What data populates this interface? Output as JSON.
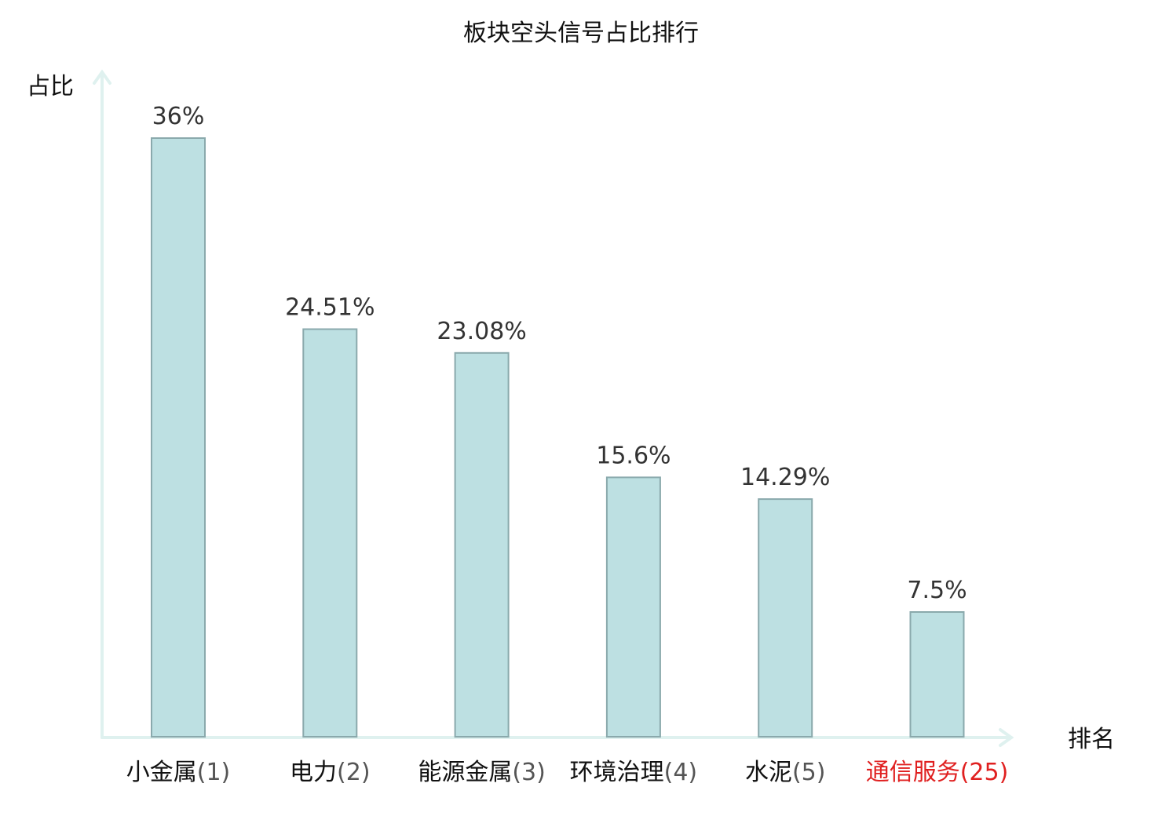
{
  "chart_data": {
    "type": "bar",
    "title": "板块空头信号占比排行",
    "xlabel": "排名",
    "ylabel": "占比",
    "categories": [
      "小金属",
      "电力",
      "能源金属",
      "环境治理",
      "水泥",
      "通信服务"
    ],
    "ranks": [
      "(1)",
      "(2)",
      "(3)",
      "(4)",
      "(5)",
      "(25)"
    ],
    "highlighted": [
      false,
      false,
      false,
      false,
      false,
      true
    ],
    "values": [
      36,
      24.51,
      23.08,
      15.6,
      14.29,
      7.5
    ],
    "value_labels": [
      "36%",
      "24.51%",
      "23.08%",
      "15.6%",
      "14.29%",
      "7.5%"
    ],
    "ylim": [
      0,
      36
    ],
    "grid": false,
    "legend": "none"
  },
  "colors": {
    "bar_fill": "#bde0e2",
    "bar_stroke": "#8aa9ac",
    "axis": "#dff1ef",
    "text": "#111111",
    "value_text": "#333333",
    "rank_text": "#555555",
    "highlight": "#e02020"
  }
}
